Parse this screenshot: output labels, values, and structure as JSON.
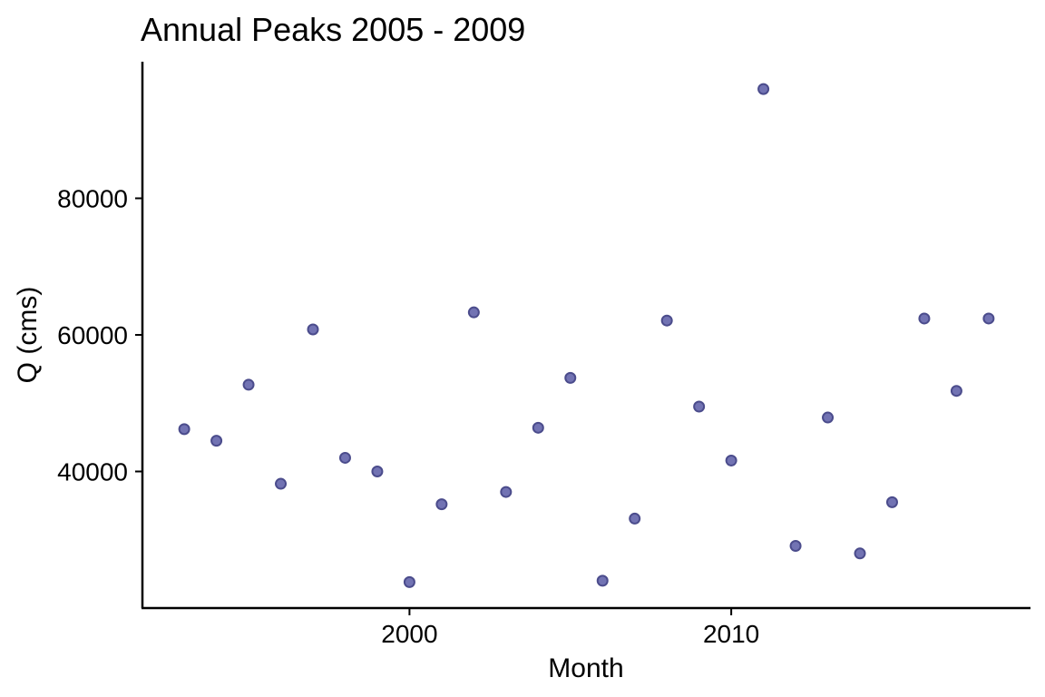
{
  "chart_data": {
    "type": "scatter",
    "title": "Annual Peaks 2005 - 2009",
    "xlabel": "Month",
    "ylabel": "Q (cms)",
    "xlim": [
      1991.7,
      2019.3
    ],
    "ylim": [
      20000,
      100000
    ],
    "xticks": [
      2000,
      2010
    ],
    "yticks": [
      40000,
      60000,
      80000
    ],
    "grid": false,
    "legend": "none",
    "point_color": "#7273B3",
    "point_edge_color": "#4B4C8C",
    "series": [
      {
        "x": [
          1993,
          1994,
          1995,
          1996,
          1997,
          1998,
          1999,
          2000,
          2001,
          2002,
          2003,
          2004,
          2005,
          2006,
          2007,
          2008,
          2009,
          2010,
          2011,
          2012,
          2013,
          2014,
          2015,
          2016,
          2017,
          2018
        ],
        "y": [
          46200,
          44500,
          52700,
          38200,
          60800,
          42000,
          40000,
          23800,
          35200,
          63300,
          37000,
          46400,
          53700,
          24000,
          33100,
          62100,
          49500,
          41600,
          96000,
          29100,
          47900,
          28000,
          35500,
          62400,
          51800,
          62400
        ]
      }
    ]
  }
}
